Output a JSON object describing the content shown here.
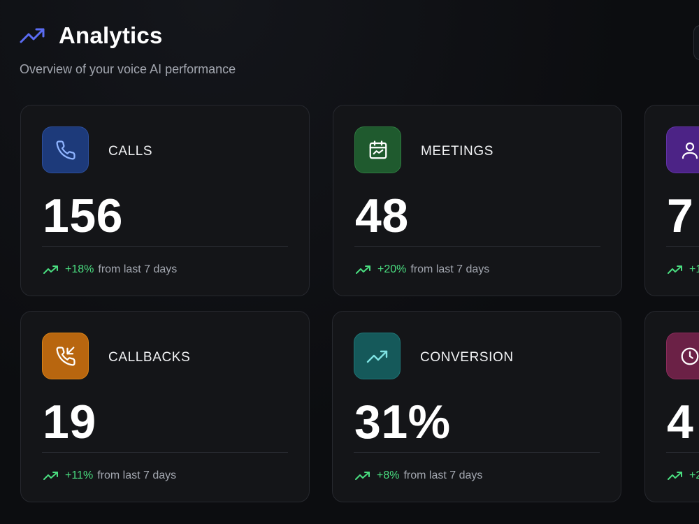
{
  "header": {
    "title": "Analytics",
    "subtitle": "Overview of your voice AI performance",
    "icon": "trending-up-icon"
  },
  "colors": {
    "accent": "#5b6cf2",
    "positive": "#4ade80",
    "background": "#0c0d10",
    "card": "#141518"
  },
  "cards": [
    {
      "label": "CALLS",
      "value": "156",
      "delta": "+18%",
      "period": "from last 7 days",
      "icon": "phone-icon",
      "icon_color": "#1d3a7a"
    },
    {
      "label": "MEETINGS",
      "value": "48",
      "delta": "+20%",
      "period": "from last 7 days",
      "icon": "calendar-icon",
      "icon_color": "#1f5a2e"
    },
    {
      "label": "",
      "value": "7",
      "delta": "+1",
      "period": "",
      "icon": "user-icon",
      "icon_color": "#4c2386"
    },
    {
      "label": "CALLBACKS",
      "value": "19",
      "delta": "+11%",
      "period": "from last 7 days",
      "icon": "phone-callback-icon",
      "icon_color": "#b8660f"
    },
    {
      "label": "CONVERSION",
      "value": "31%",
      "delta": "+8%",
      "period": "from last 7 days",
      "icon": "trending-up-icon",
      "icon_color": "#15595a"
    },
    {
      "label": "",
      "value": "4",
      "delta": "+2",
      "period": "",
      "icon": "clock-icon",
      "icon_color": "#6b2146"
    }
  ]
}
